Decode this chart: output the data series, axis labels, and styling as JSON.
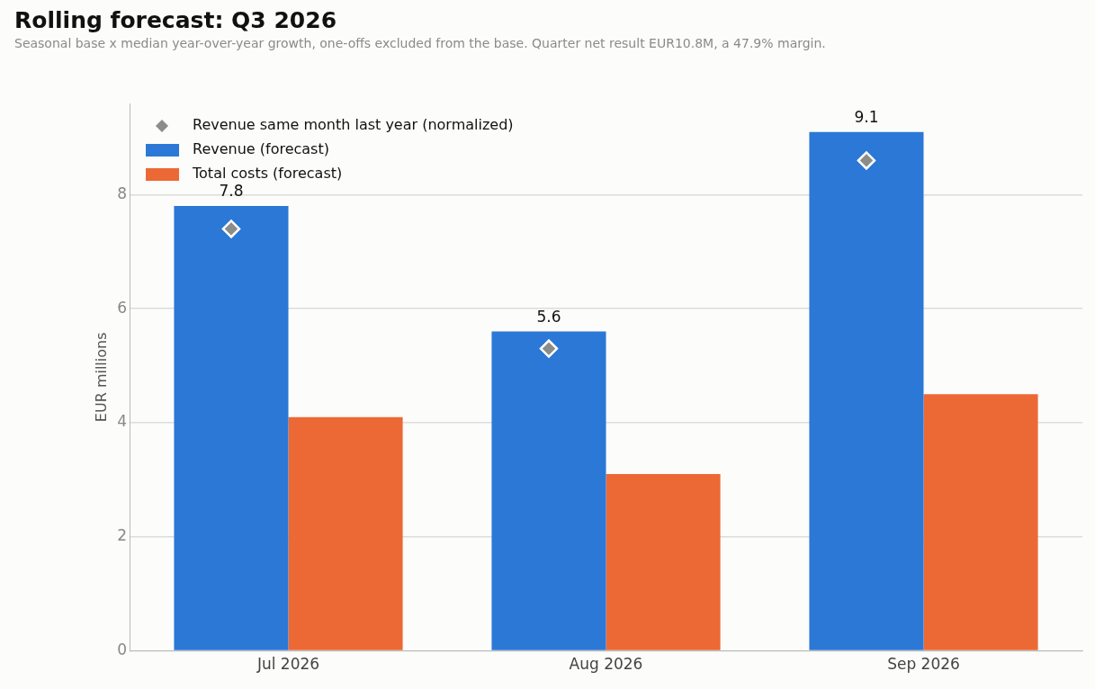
{
  "chart_data": {
    "type": "bar",
    "title": "Rolling forecast: Q3 2026",
    "subtitle": "Seasonal base x median year-over-year growth, one-offs excluded from the base. Quarter net result EUR10.8M, a 47.9% margin.",
    "ylabel": "EUR millions",
    "categories": [
      "Jul 2026",
      "Aug 2026",
      "Sep 2026"
    ],
    "series": [
      {
        "name": "Revenue same month last year (normalized)",
        "type": "scatter",
        "color": "#8c8c88",
        "x": [
          "Jul 2026",
          "Aug 2026",
          "Sep 2026"
        ],
        "values": [
          7.4,
          5.3,
          8.6
        ]
      },
      {
        "name": "Revenue (forecast)",
        "color": "#2b78d6",
        "values": [
          7.8,
          5.6,
          9.1
        ],
        "value_labels": [
          "7.8",
          "5.6",
          "9.1"
        ]
      },
      {
        "name": "Total costs (forecast)",
        "color": "#ec6835",
        "values": [
          4.1,
          3.1,
          4.5
        ]
      }
    ],
    "ylim": [
      0,
      9.6
    ],
    "yticks": [
      0,
      2,
      4,
      6,
      8
    ],
    "grid": "y",
    "legend": "top left",
    "marker": "diamond"
  }
}
